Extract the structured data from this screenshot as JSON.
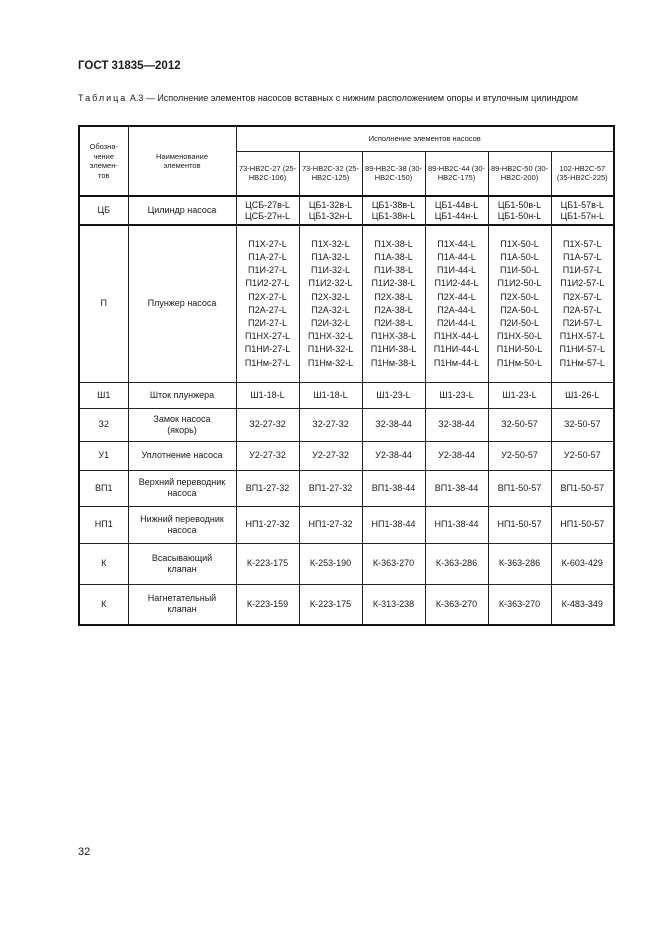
{
  "header": {
    "doc_title": "ГОСТ 31835—2012"
  },
  "caption": {
    "label": "Таблица",
    "text": "А.3 — Исполнение элементов насосов вставных с нижним расположением опоры и втулочным цилиндром"
  },
  "table": {
    "col_designation": "Обозна-чение элемен-тов",
    "col_name": "Наименование элементов",
    "col_group": "Исполнение элементов насосов",
    "pump_columns": [
      "73-НВ2С-27 (25-НВ2С-106)",
      "73-НВ2С-32 (25-НВ2С-125)",
      "89-НВ2С-38 (30-НВ2С-150)",
      "89-НВ2С-44 (30-НВ2С-175)",
      "89-НВ2С-50 (30-НВ2С-200)",
      "102-НВ2С-57 (35-НВ2С-225)"
    ],
    "rows": [
      {
        "code": "ЦБ",
        "name": "Цилиндр насоса",
        "values": [
          [
            "ЦСБ-27в-L",
            "ЦСБ-27н-L"
          ],
          [
            "ЦБ1-32в-L",
            "ЦБ1-32н-L"
          ],
          [
            "ЦБ1-38в-L",
            "ЦБ1-38н-L"
          ],
          [
            "ЦБ1-44в-L",
            "ЦБ1-44н-L"
          ],
          [
            "ЦБ1-50в-L",
            "ЦБ1-50н-L"
          ],
          [
            "ЦБ1-57в-L",
            "ЦБ1-57н-L"
          ]
        ]
      },
      {
        "code": "П",
        "name": "Плунжер насоса",
        "values": [
          [
            "П1Х-27-L",
            "П1А-27-L",
            "П1И-27-L",
            "П1И2-27-L",
            "П2Х-27-L",
            "П2А-27-L",
            "П2И-27-L",
            "П1НХ-27-L",
            "П1НИ-27-L",
            "П1Нм-27-L"
          ],
          [
            "П1Х-32-L",
            "П1А-32-L",
            "П1И-32-L",
            "П1И2-32-L",
            "П2Х-32-L",
            "П2А-32-L",
            "П2И-32-L",
            "П1НХ-32-L",
            "П1НИ-32-L",
            "П1Нм-32-L"
          ],
          [
            "П1Х-38-L",
            "П1А-38-L",
            "П1И-38-L",
            "П1И2-38-L",
            "П2Х-38-L",
            "П2А-38-L",
            "П2И-38-L",
            "П1НХ-38-L",
            "П1НИ-38-L",
            "П1Нм-38-L"
          ],
          [
            "П1Х-44-L",
            "П1А-44-L",
            "П1И-44-L",
            "П1И2-44-L",
            "П2Х-44-L",
            "П2А-44-L",
            "П2И-44-L",
            "П1НХ-44-L",
            "П1НИ-44-L",
            "П1Нм-44-L"
          ],
          [
            "П1Х-50-L",
            "П1А-50-L",
            "П1И-50-L",
            "П1И2-50-L",
            "П2Х-50-L",
            "П2А-50-L",
            "П2И-50-L",
            "П1НХ-50-L",
            "П1НИ-50-L",
            "П1Нм-50-L"
          ],
          [
            "П1Х-57-L",
            "П1А-57-L",
            "П1И-57-L",
            "П1И2-57-L",
            "П2Х-57-L",
            "П2А-57-L",
            "П2И-57-L",
            "П1НХ-57-L",
            "П1НИ-57-L",
            "П1Нм-57-L"
          ]
        ]
      },
      {
        "code": "Ш1",
        "name": "Шток плунжера",
        "values": [
          [
            "Ш1-18-L"
          ],
          [
            "Ш1-18-L"
          ],
          [
            "Ш1-23-L"
          ],
          [
            "Ш1-23-L"
          ],
          [
            "Ш1-23-L"
          ],
          [
            "Ш1-26-L"
          ]
        ]
      },
      {
        "code": "З2",
        "name": "Замок насоса (якорь)",
        "values": [
          [
            "З2-27-32"
          ],
          [
            "З2-27-32"
          ],
          [
            "З2-38-44"
          ],
          [
            "З2-38-44"
          ],
          [
            "З2-50-57"
          ],
          [
            "З2-50-57"
          ]
        ]
      },
      {
        "code": "У1",
        "name": "Уплотнение насоса",
        "values": [
          [
            "У2-27-32"
          ],
          [
            "У2-27-32"
          ],
          [
            "У2-38-44"
          ],
          [
            "У2-38-44"
          ],
          [
            "У2-50-57"
          ],
          [
            "У2-50-57"
          ]
        ]
      },
      {
        "code": "ВП1",
        "name": "Верхний переводник насоса",
        "values": [
          [
            "ВП1-27-32"
          ],
          [
            "ВП1-27-32"
          ],
          [
            "ВП1-38-44"
          ],
          [
            "ВП1-38-44"
          ],
          [
            "ВП1-50-57"
          ],
          [
            "ВП1-50-57"
          ]
        ]
      },
      {
        "code": "НП1",
        "name": "Нижний переводник насоса",
        "values": [
          [
            "НП1-27-32"
          ],
          [
            "НП1-27-32"
          ],
          [
            "НП1-38-44"
          ],
          [
            "НП1-38-44"
          ],
          [
            "НП1-50-57"
          ],
          [
            "НП1-50-57"
          ]
        ]
      },
      {
        "code": "К",
        "name": "Всасывающий клапан",
        "values": [
          [
            "К-223-175"
          ],
          [
            "К-253-190"
          ],
          [
            "К-363-270"
          ],
          [
            "К-363-286"
          ],
          [
            "К-363-286"
          ],
          [
            "К-603-429"
          ]
        ]
      },
      {
        "code": "К",
        "name": "Нагнетательный клапан",
        "values": [
          [
            "К-223-159"
          ],
          [
            "К-223-175"
          ],
          [
            "К-313-238"
          ],
          [
            "К-363-270"
          ],
          [
            "К-363-270"
          ],
          [
            "К-483-349"
          ]
        ]
      }
    ]
  },
  "footer": {
    "page_number": "32"
  }
}
